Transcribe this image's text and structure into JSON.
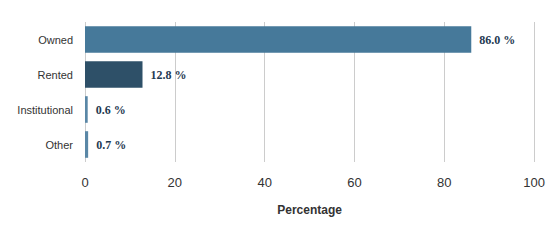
{
  "chart_data": {
    "type": "bar",
    "orientation": "horizontal",
    "categories": [
      "Owned",
      "Rented",
      "Institutional",
      "Other"
    ],
    "values": [
      86.0,
      12.8,
      0.6,
      0.7
    ],
    "value_labels": [
      "86.0 %",
      "12.8 %",
      "0.6 %",
      "0.7 %"
    ],
    "colors": [
      "#46799a",
      "#2e5068",
      "#5a87a6",
      "#5a87a6"
    ],
    "xlabel": "Percentage",
    "xlim": [
      0,
      100
    ],
    "xticks": [
      0,
      20,
      40,
      60,
      80,
      100
    ],
    "grid": true,
    "data_labels": true
  }
}
